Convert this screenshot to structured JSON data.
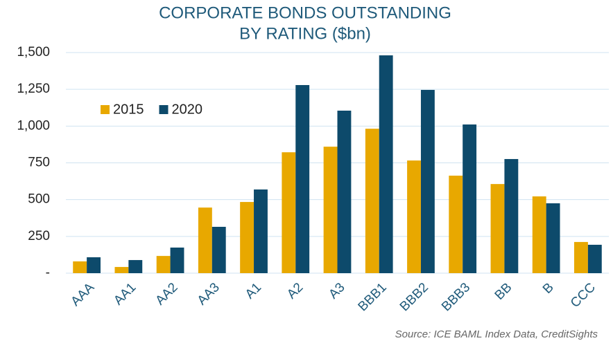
{
  "chart_data": {
    "type": "bar",
    "title": [
      "CORPORATE  BONDS OUTSTANDING",
      "BY RATING  ($bn)"
    ],
    "categories": [
      "AAA",
      "AA1",
      "AA2",
      "AA3",
      "A1",
      "A2",
      "A3",
      "BBB1",
      "BBB2",
      "BBB3",
      "BB",
      "B",
      "CCC"
    ],
    "series": [
      {
        "name": "2015",
        "color": "#e8a800",
        "values": [
          80,
          42,
          117,
          446,
          484,
          822,
          860,
          982,
          766,
          663,
          606,
          522,
          212
        ]
      },
      {
        "name": "2020",
        "color": "#0d4a6b",
        "values": [
          108,
          89,
          174,
          315,
          569,
          1279,
          1105,
          1481,
          1246,
          1011,
          776,
          475,
          193
        ]
      }
    ],
    "ylim": [
      0,
      1500
    ],
    "yticks": [
      {
        "value": 0,
        "label": "-"
      },
      250,
      500,
      750,
      {
        "value": 1000,
        "label": "1,000"
      },
      {
        "value": 1250,
        "label": "1,250"
      },
      {
        "value": 1500,
        "label": "1,500"
      }
    ],
    "grid": true,
    "legend": "upper left",
    "source": "Source: ICE BAML Index Data, CreditSights"
  }
}
